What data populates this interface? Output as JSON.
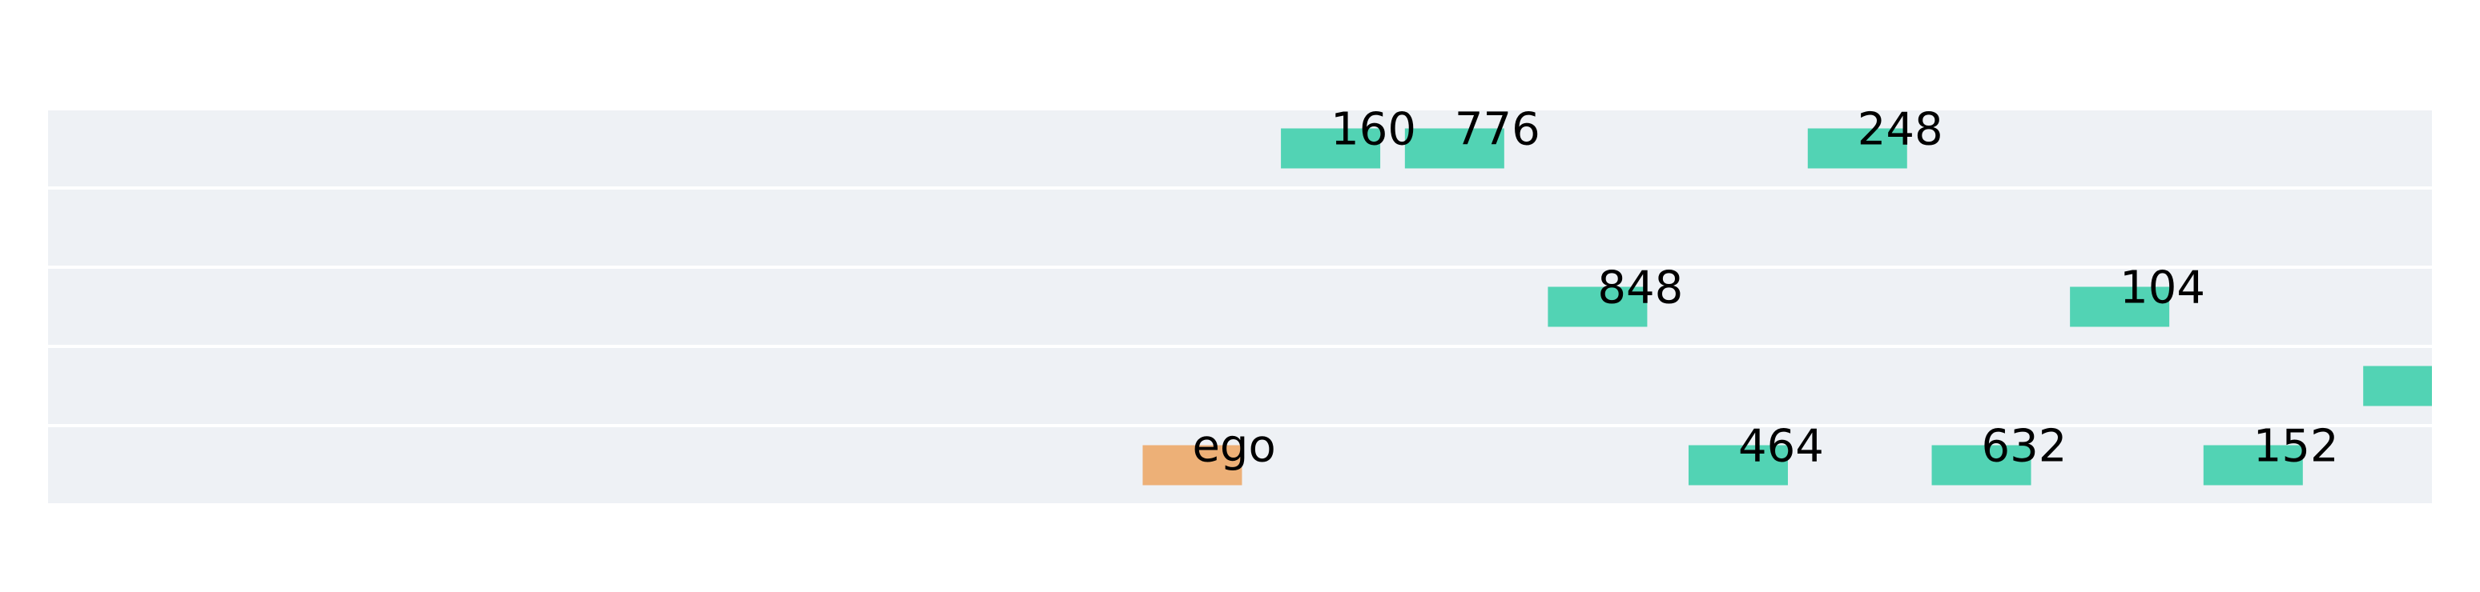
{
  "chart_data": {
    "type": "lane-occupancy",
    "lanes": 5,
    "colors": {
      "lane_background": "#eef1f5",
      "ego": "#edb077",
      "vehicle": "#52d3b4"
    },
    "vehicles": [
      {
        "id": "160",
        "label": "160",
        "lane": 0,
        "x": 0.538,
        "kind": "vehicle"
      },
      {
        "id": "776",
        "label": "776",
        "lane": 0,
        "x": 0.59,
        "kind": "vehicle"
      },
      {
        "id": "248",
        "label": "248",
        "lane": 0,
        "x": 0.759,
        "kind": "vehicle"
      },
      {
        "id": "848",
        "label": "848",
        "lane": 2,
        "x": 0.65,
        "kind": "vehicle"
      },
      {
        "id": "104",
        "label": "104",
        "lane": 2,
        "x": 0.869,
        "kind": "vehicle"
      },
      {
        "id": "unlabeled-1",
        "label": "",
        "lane": 3,
        "x": 0.992,
        "kind": "vehicle"
      },
      {
        "id": "ego",
        "label": "ego",
        "lane": 4,
        "x": 0.48,
        "kind": "ego"
      },
      {
        "id": "464",
        "label": "464",
        "lane": 4,
        "x": 0.709,
        "kind": "vehicle"
      },
      {
        "id": "632",
        "label": "632",
        "lane": 4,
        "x": 0.811,
        "kind": "vehicle"
      },
      {
        "id": "152",
        "label": "152",
        "lane": 4,
        "x": 0.925,
        "kind": "vehicle"
      }
    ]
  }
}
